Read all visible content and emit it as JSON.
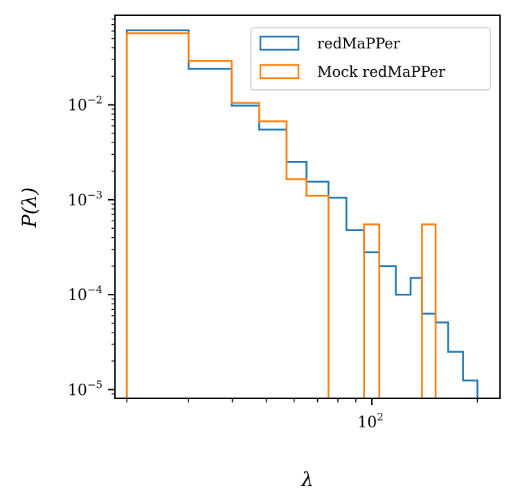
{
  "chart_data": {
    "type": "histogram-step",
    "xscale": "log",
    "yscale": "log",
    "xlim": [
      18.5,
      232
    ],
    "ylim": [
      8.1e-06,
      0.088
    ],
    "xlabel": "λ",
    "ylabel": "P(λ)",
    "x_tick_labels": [
      {
        "value": 100,
        "base": "10",
        "exp": "2"
      }
    ],
    "x_minor_ticks": [
      20,
      30,
      40,
      50,
      60,
      70,
      80,
      90,
      200
    ],
    "y_tick_labels": [
      {
        "value": 0.01,
        "base": "10",
        "exp": "−2"
      },
      {
        "value": 0.001,
        "base": "10",
        "exp": "−3"
      },
      {
        "value": 0.0001,
        "base": "10",
        "exp": "−4"
      },
      {
        "value": 1e-05,
        "base": "10",
        "exp": "−5"
      }
    ],
    "bin_edges": [
      20.0,
      30.0,
      39.8,
      47.7,
      57.1,
      65.1,
      75.2,
      84.6,
      95.0,
      105.0,
      117.0,
      129.0,
      139.0,
      152.0,
      165.0,
      182.0,
      200.0
    ],
    "series": [
      {
        "name": "redMaPPer",
        "color": "#1f77b4",
        "values": [
          0.061,
          0.024,
          0.0098,
          0.0055,
          0.0025,
          0.00155,
          0.00105,
          0.00048,
          0.00028,
          0.0002,
          0.0001,
          0.00015,
          6.3e-05,
          5.1e-05,
          2.5e-05,
          1.25e-05
        ]
      },
      {
        "name": "Mock redMaPPer",
        "color": "#ff7f0e",
        "values": [
          0.057,
          0.029,
          0.0105,
          0.0067,
          0.00165,
          0.0011,
          0,
          0,
          0.00055,
          0,
          0,
          0,
          0.00055,
          0,
          0,
          0
        ]
      }
    ],
    "legend": {
      "location": "top-right",
      "entries": [
        "redMaPPer",
        "Mock redMaPPer"
      ]
    }
  }
}
